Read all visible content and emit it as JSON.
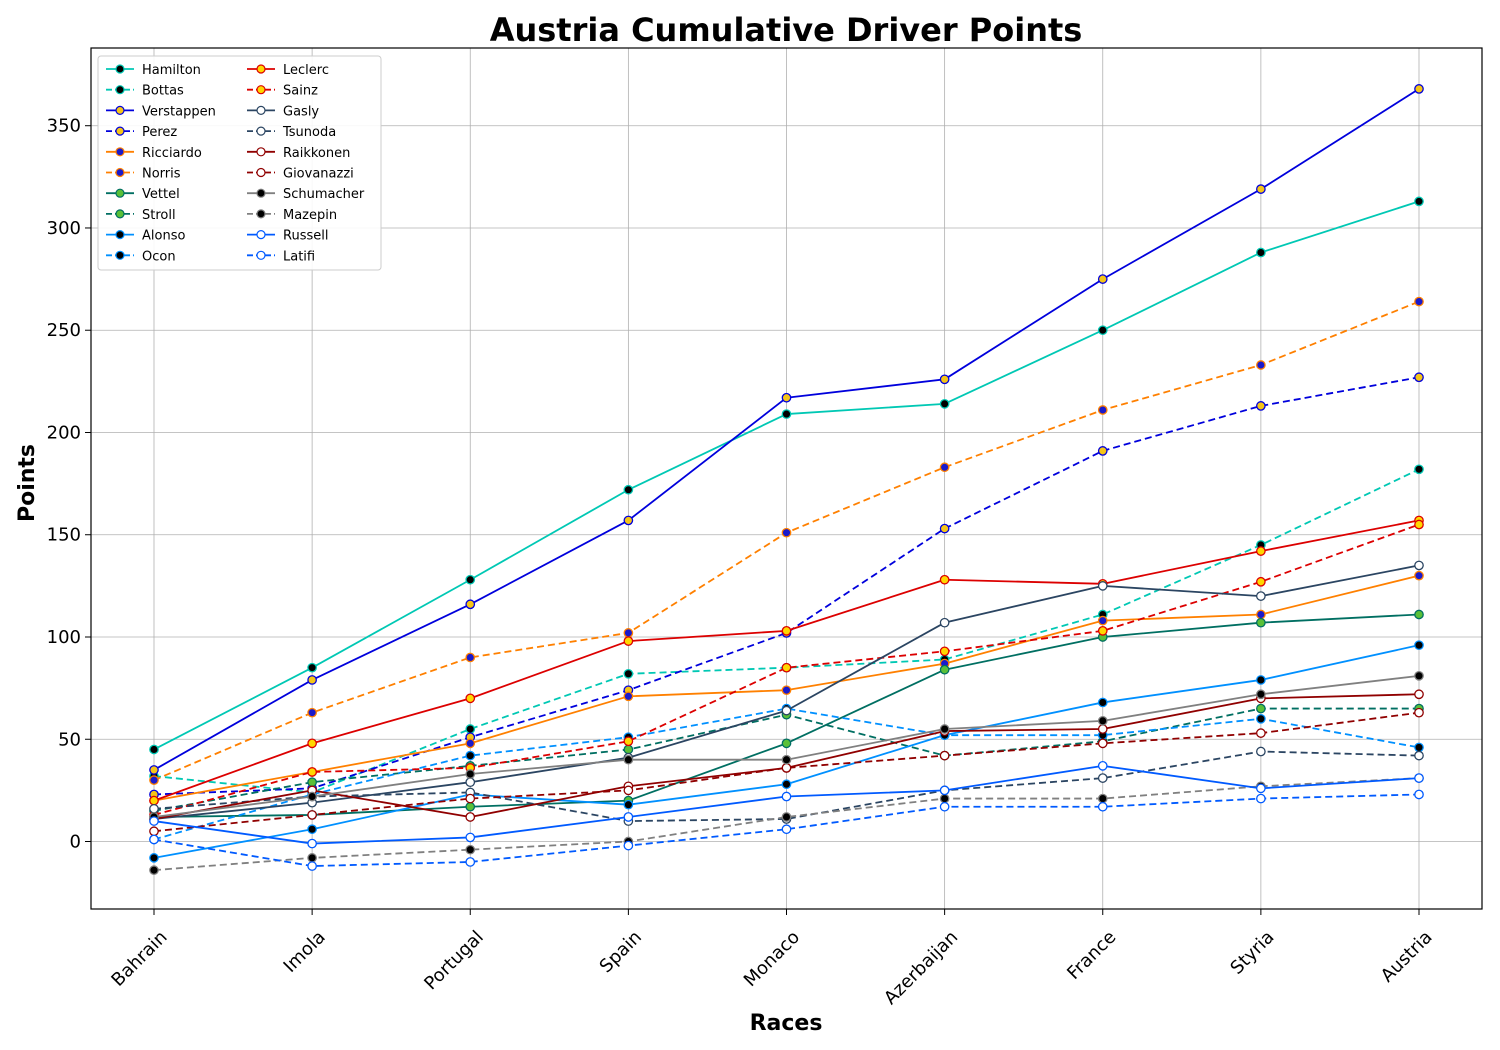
{
  "chart_data": {
    "type": "line",
    "title": "Austria Cumulative Driver Points",
    "xlabel": "Races",
    "ylabel": "Points",
    "categories": [
      "Bahrain",
      "Imola",
      "Portugal",
      "Spain",
      "Monaco",
      "Azerbaijan",
      "France",
      "Styria",
      "Austria"
    ],
    "ylim": [
      -33,
      388
    ],
    "yticks": [
      0,
      50,
      100,
      150,
      200,
      250,
      300,
      350
    ],
    "grid": true,
    "legend_position": "top-left",
    "series": [
      {
        "name": "Hamilton",
        "color": "#00c8b4",
        "dash": "solid",
        "marker_fill": "#000000",
        "values": [
          45,
          85,
          128,
          172,
          209,
          214,
          250,
          288,
          313
        ]
      },
      {
        "name": "Bottas",
        "color": "#00c8b4",
        "dash": "dashed",
        "marker_fill": "#000000",
        "values": [
          32,
          24,
          55,
          82,
          85,
          89,
          111,
          145,
          182
        ]
      },
      {
        "name": "Verstappen",
        "color": "#0000dc",
        "dash": "solid",
        "marker_fill": "#f5c518",
        "values": [
          35,
          79,
          116,
          157,
          217,
          226,
          275,
          319,
          368
        ]
      },
      {
        "name": "Perez",
        "color": "#0000dc",
        "dash": "dashed",
        "marker_fill": "#f5c518",
        "values": [
          23,
          26,
          51,
          74,
          102,
          153,
          191,
          213,
          227
        ]
      },
      {
        "name": "Ricciardo",
        "color": "#ff8000",
        "dash": "solid",
        "marker_fill": "#1a1acc",
        "values": [
          20,
          34,
          48,
          71,
          74,
          87,
          108,
          111,
          130
        ]
      },
      {
        "name": "Norris",
        "color": "#ff8000",
        "dash": "dashed",
        "marker_fill": "#1a1acc",
        "values": [
          30,
          63,
          90,
          102,
          151,
          183,
          211,
          233,
          264
        ]
      },
      {
        "name": "Vettel",
        "color": "#006f62",
        "dash": "solid",
        "marker_fill": "#5ac038",
        "values": [
          12,
          13,
          17,
          20,
          48,
          84,
          100,
          107,
          111
        ]
      },
      {
        "name": "Stroll",
        "color": "#006f62",
        "dash": "dashed",
        "marker_fill": "#5ac038",
        "values": [
          15,
          29,
          37,
          45,
          62,
          42,
          49,
          65,
          65
        ]
      },
      {
        "name": "Alonso",
        "color": "#0090ff",
        "dash": "solid",
        "marker_fill": "#000000",
        "values": [
          -8,
          6,
          23,
          18,
          28,
          52,
          68,
          79,
          96
        ]
      },
      {
        "name": "Ocon",
        "color": "#0090ff",
        "dash": "dashed",
        "marker_fill": "#000000",
        "values": [
          1,
          23,
          42,
          51,
          65,
          52,
          52,
          60,
          46
        ]
      },
      {
        "name": "Leclerc",
        "color": "#dc0000",
        "dash": "solid",
        "marker_fill": "#ffd700",
        "values": [
          20,
          48,
          70,
          98,
          103,
          128,
          126,
          142,
          157
        ]
      },
      {
        "name": "Sainz",
        "color": "#dc0000",
        "dash": "dashed",
        "marker_fill": "#ffd700",
        "values": [
          13,
          34,
          36,
          49,
          85,
          93,
          103,
          127,
          155
        ]
      },
      {
        "name": "Gasly",
        "color": "#2b4562",
        "dash": "solid",
        "marker_fill": "#ffffff",
        "values": [
          11,
          19,
          29,
          41,
          64,
          107,
          125,
          120,
          135
        ]
      },
      {
        "name": "Tsunoda",
        "color": "#2b4562",
        "dash": "dashed",
        "marker_fill": "#ffffff",
        "values": [
          16,
          22,
          24,
          10,
          11,
          25,
          31,
          44,
          42
        ]
      },
      {
        "name": "Raikkonen",
        "color": "#900000",
        "dash": "solid",
        "marker_fill": "#ffffff",
        "values": [
          11,
          25,
          12,
          27,
          36,
          54,
          55,
          70,
          72
        ]
      },
      {
        "name": "Giovanazzi",
        "color": "#900000",
        "dash": "dashed",
        "marker_fill": "#ffffff",
        "values": [
          5,
          13,
          21,
          25,
          36,
          42,
          48,
          53,
          63
        ]
      },
      {
        "name": "Schumacher",
        "color": "#808080",
        "dash": "solid",
        "marker_fill": "#000000",
        "values": [
          12,
          22,
          33,
          40,
          40,
          55,
          59,
          72,
          81
        ]
      },
      {
        "name": "Mazepin",
        "color": "#808080",
        "dash": "dashed",
        "marker_fill": "#000000",
        "values": [
          -14,
          -8,
          -4,
          0,
          12,
          21,
          21,
          27,
          31
        ]
      },
      {
        "name": "Russell",
        "color": "#005aff",
        "dash": "solid",
        "marker_fill": "#ffffff",
        "values": [
          10,
          -1,
          2,
          12,
          22,
          25,
          37,
          26,
          31
        ]
      },
      {
        "name": "Latifi",
        "color": "#005aff",
        "dash": "dashed",
        "marker_fill": "#ffffff",
        "values": [
          1,
          -12,
          -10,
          -2,
          6,
          17,
          17,
          21,
          23
        ]
      }
    ]
  }
}
